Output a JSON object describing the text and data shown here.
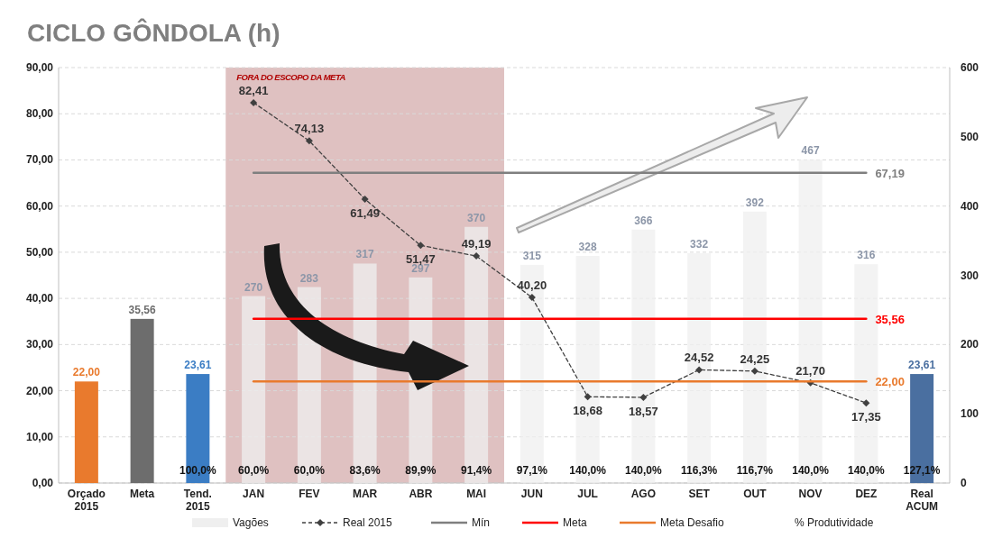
{
  "chart_data": {
    "type": "bar",
    "title": "CICLO GÔNDOLA (h)",
    "categories": [
      "Orçado 2015",
      "Meta",
      "Tend. 2015",
      "JAN",
      "FEV",
      "MAR",
      "ABR",
      "MAI",
      "JUN",
      "JUL",
      "AGO",
      "SET",
      "OUT",
      "NOV",
      "DEZ",
      "Real ACUM"
    ],
    "ylim": [
      0,
      90
    ],
    "yticks": [
      {
        "value": 0,
        "label": "0,00"
      },
      {
        "value": 10,
        "label": "10,00"
      },
      {
        "value": 20,
        "label": "20,00"
      },
      {
        "value": 30,
        "label": "30,00"
      },
      {
        "value": 40,
        "label": "40,00"
      },
      {
        "value": 50,
        "label": "50,00"
      },
      {
        "value": 60,
        "label": "60,00"
      },
      {
        "value": 70,
        "label": "70,00"
      },
      {
        "value": 80,
        "label": "80,00"
      },
      {
        "value": 90,
        "label": "90,00"
      }
    ],
    "y2lim": [
      0,
      600
    ],
    "y2ticks": [
      0,
      100,
      200,
      300,
      400,
      500,
      600
    ],
    "grid": "y",
    "legend": "bottom",
    "series": [
      {
        "name": "Vagões",
        "axis": "y2",
        "color": "#efefef",
        "values": [
          null,
          null,
          null,
          270,
          283,
          317,
          297,
          370,
          315,
          328,
          366,
          332,
          392,
          467,
          316,
          null
        ],
        "value_labels": [
          null,
          null,
          null,
          "270",
          "283",
          "317",
          "297",
          "370",
          "315",
          "328",
          "366",
          "332",
          "392",
          "467",
          "316",
          null
        ]
      },
      {
        "type": "bar",
        "colors": [
          "#e97a2d",
          "#6d6d6d",
          "#3b7dc4",
          null,
          null,
          null,
          null,
          null,
          null,
          null,
          null,
          null,
          null,
          null,
          null,
          "#4a6fa0"
        ],
        "values": [
          22.0,
          35.56,
          23.61,
          null,
          null,
          null,
          null,
          null,
          null,
          null,
          null,
          null,
          null,
          null,
          null,
          23.61
        ],
        "value_labels": [
          "22,00",
          "35,56",
          "23,61",
          null,
          null,
          null,
          null,
          null,
          null,
          null,
          null,
          null,
          null,
          null,
          null,
          "23,61"
        ]
      },
      {
        "name": "Real 2015",
        "type": "line",
        "color": "#404040",
        "marker": "diamond",
        "line_style": "dashed",
        "values": [
          null,
          null,
          null,
          82.41,
          74.13,
          61.49,
          51.47,
          49.19,
          40.2,
          18.68,
          18.57,
          24.52,
          24.25,
          21.7,
          17.35,
          null
        ],
        "value_labels": [
          null,
          null,
          null,
          "82,41",
          "74,13",
          "61,49",
          "51,47",
          "49,19",
          "40,20",
          "18,68",
          "18,57",
          "24,52",
          "24,25",
          "21,70",
          "17,35",
          null
        ]
      },
      {
        "name": "Mín",
        "type": "line",
        "color": "#7f7f7f",
        "values": [
          null,
          null,
          null,
          67.19,
          67.19,
          67.19,
          67.19,
          67.19,
          67.19,
          67.19,
          67.19,
          67.19,
          67.19,
          67.19,
          67.19,
          null
        ],
        "value_labels": [
          null,
          null,
          null,
          null,
          null,
          null,
          null,
          null,
          null,
          null,
          null,
          null,
          null,
          null,
          "67,19",
          null
        ]
      },
      {
        "name": "Meta",
        "type": "line",
        "color": "#ff0000",
        "values": [
          null,
          null,
          null,
          35.56,
          35.56,
          35.56,
          35.56,
          35.56,
          35.56,
          35.56,
          35.56,
          35.56,
          35.56,
          35.56,
          35.56,
          null
        ],
        "value_labels": [
          null,
          null,
          null,
          null,
          null,
          null,
          null,
          null,
          null,
          null,
          null,
          null,
          null,
          null,
          "35,56",
          null
        ]
      },
      {
        "name": "Meta Desafio",
        "type": "line",
        "color": "#e97a2d",
        "values": [
          null,
          null,
          null,
          22.0,
          22.0,
          22.0,
          22.0,
          22.0,
          22.0,
          22.0,
          22.0,
          22.0,
          22.0,
          22.0,
          22.0,
          null
        ],
        "value_labels": [
          null,
          null,
          null,
          null,
          null,
          null,
          null,
          null,
          null,
          null,
          null,
          null,
          null,
          null,
          "22,00",
          null
        ]
      }
    ],
    "bands": [
      {
        "axis": "x",
        "from": "JAN",
        "to": "MAI",
        "label": "FORA DO ESCOPO DA META",
        "color": "#c99898"
      }
    ],
    "annotations": [
      "% Produtividade",
      "100,0%",
      "60,0%",
      "60,0%",
      "83,6%",
      "89,9%",
      "91,4%",
      "97,1%",
      "140,0%",
      "140,0%",
      "116,3%",
      "116,7%",
      "140,0%",
      "140,0%",
      "127,1%"
    ]
  }
}
